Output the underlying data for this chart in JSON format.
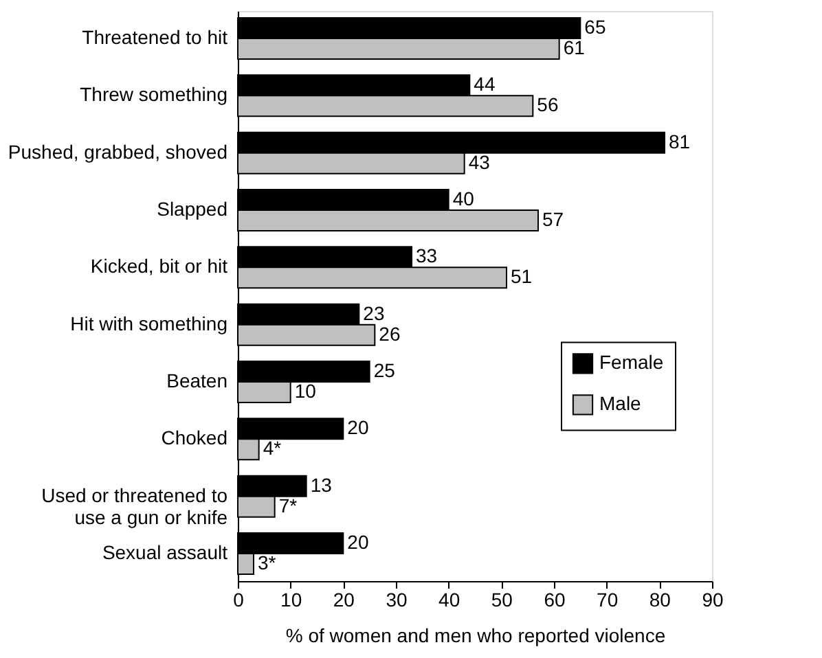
{
  "chart_data": {
    "type": "bar",
    "orientation": "horizontal",
    "categories": [
      "Threatened to hit",
      "Threw something",
      "Pushed, grabbed, shoved",
      "Slapped",
      "Kicked, bit or hit",
      "Hit with something",
      "Beaten",
      "Choked",
      "Used or threatened to\nuse a gun or knife",
      "Sexual assault"
    ],
    "series": [
      {
        "name": "Female",
        "color": "#000000",
        "values": [
          65,
          44,
          81,
          40,
          33,
          23,
          25,
          20,
          13,
          20
        ],
        "value_labels": [
          "65",
          "44",
          "81",
          "40",
          "33",
          "23",
          "25",
          "20",
          "13",
          "20"
        ]
      },
      {
        "name": "Male",
        "color": "#c0c0c0",
        "values": [
          61,
          56,
          43,
          57,
          51,
          26,
          10,
          4,
          7,
          3
        ],
        "value_labels": [
          "61",
          "56",
          "43",
          "57",
          "51",
          "26",
          "10",
          "4*",
          "7*",
          "3*"
        ]
      }
    ],
    "xlabel": "% of women and men who reported violence",
    "xlim": [
      0,
      90
    ],
    "xticks": [
      0,
      10,
      20,
      30,
      40,
      50,
      60,
      70,
      80,
      90
    ],
    "legend": "right",
    "grid": false
  }
}
